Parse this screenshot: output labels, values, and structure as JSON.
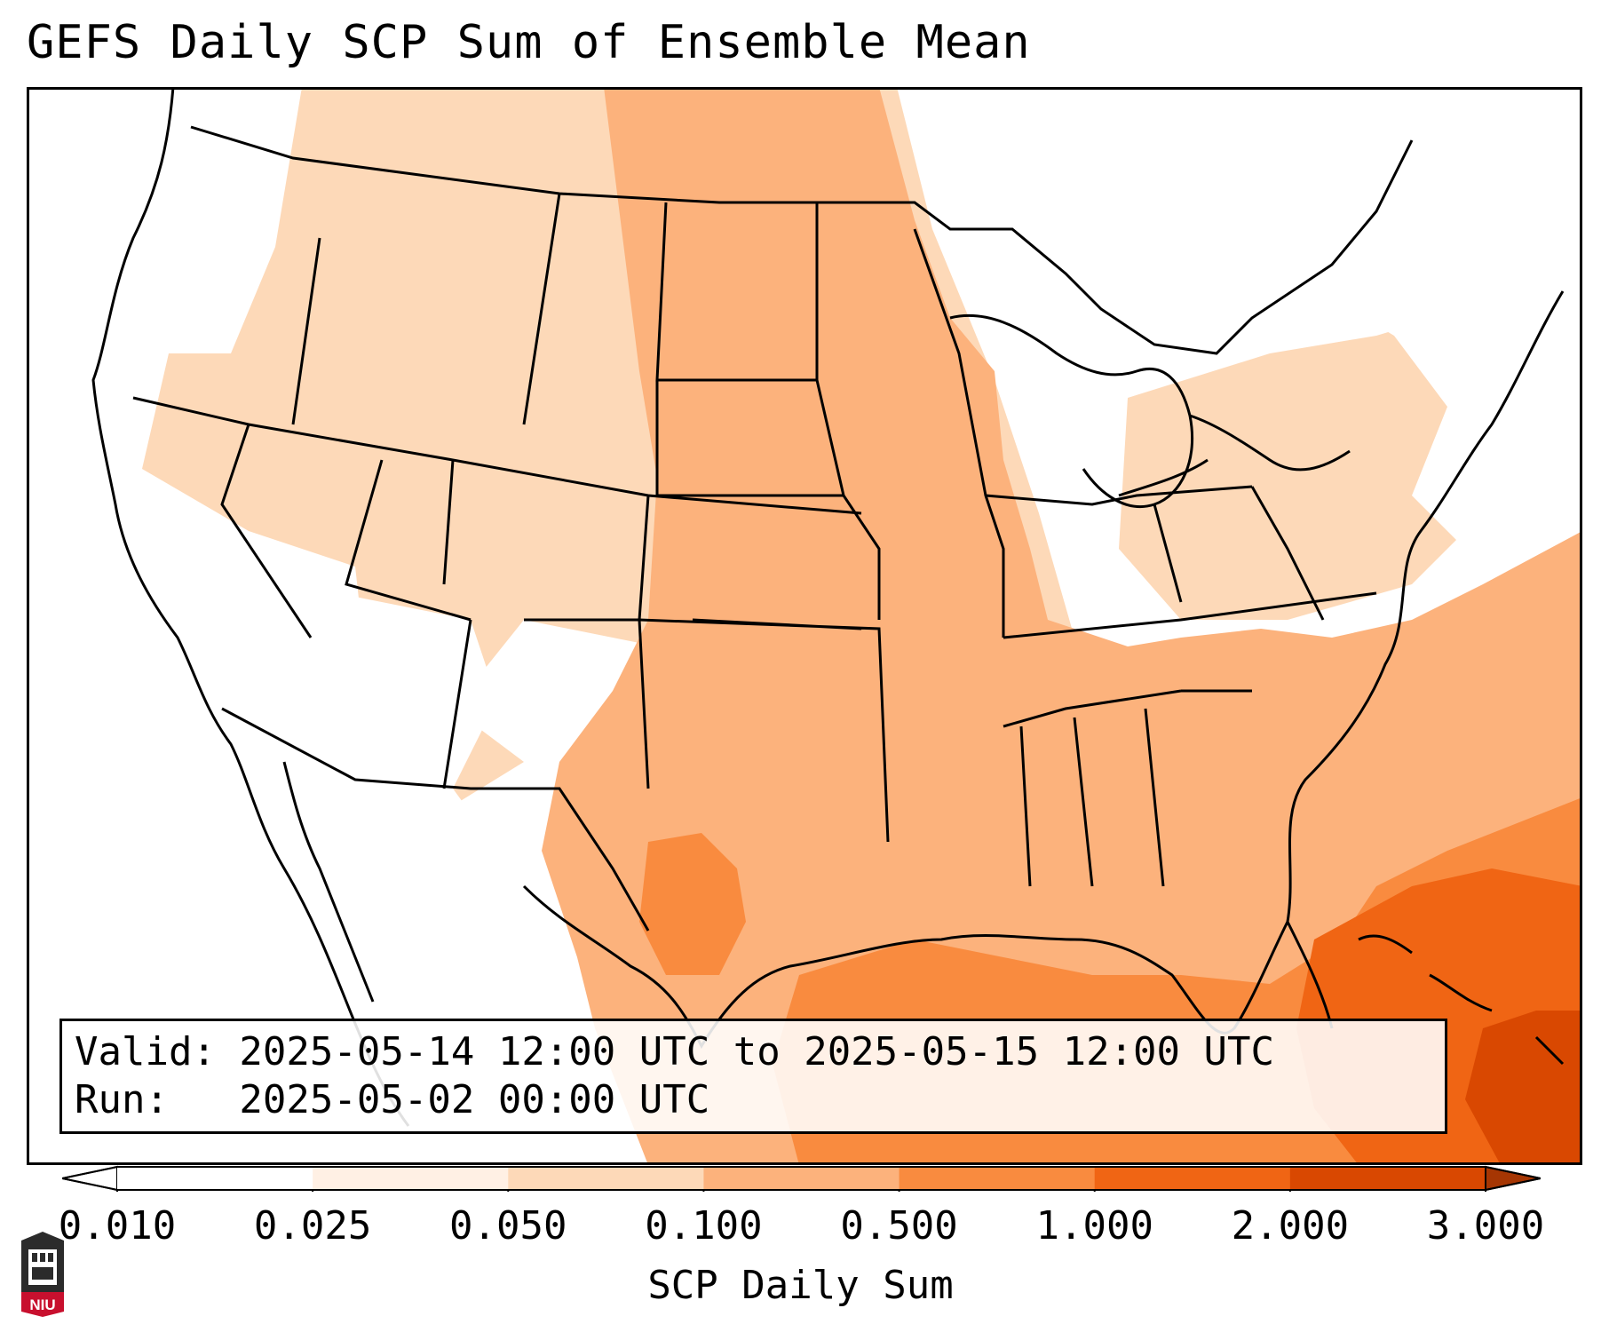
{
  "title": "GEFS Daily SCP Sum of Ensemble Mean",
  "info": {
    "valid_line": "Valid: 2025-05-14 12:00 UTC to 2025-05-15 12:00 UTC",
    "run_line": "Run:   2025-05-02 00:00 UTC"
  },
  "colorbar": {
    "label": "SCP Daily Sum",
    "ticks": [
      "0.010",
      "0.025",
      "0.050",
      "0.100",
      "0.500",
      "1.000",
      "2.000",
      "3.000"
    ],
    "colors": [
      "#ffffff",
      "#fff0e4",
      "#fdd9b8",
      "#fcb27c",
      "#f98b3f",
      "#f06514",
      "#d94801",
      "#a63603"
    ],
    "extend": "both"
  },
  "logo": {
    "text": "NIU",
    "icon": "niu-logo-icon"
  },
  "map": {
    "region": "Continental United States",
    "field_colors": {
      "none": "#ffffff",
      "very_low": "#fff0e4",
      "low": "#fdd9b8",
      "moderate": "#fcb27c",
      "high": "#f98b3f",
      "very_high": "#f06514",
      "extreme": "#d94801"
    }
  }
}
